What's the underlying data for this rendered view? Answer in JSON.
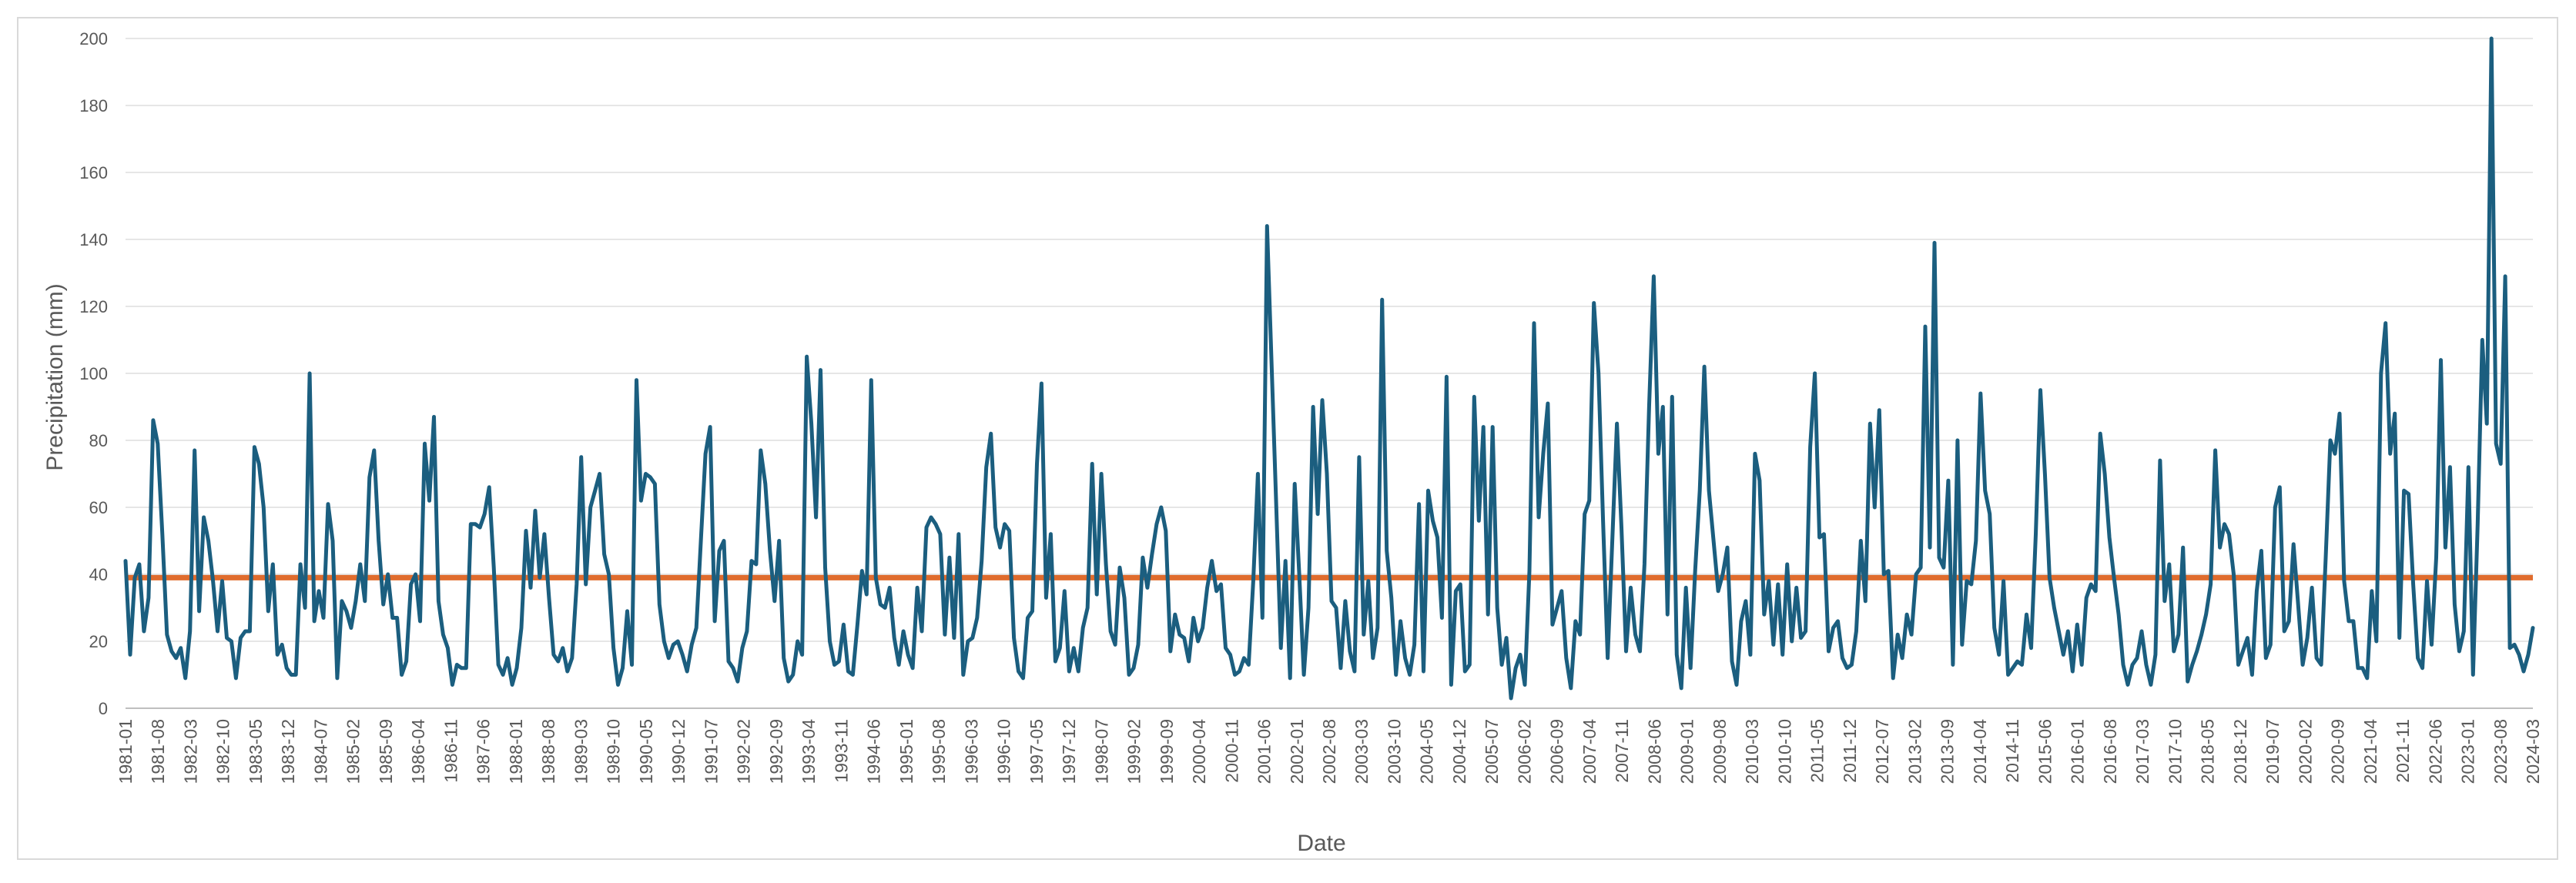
{
  "chart_data": {
    "type": "line",
    "title": "",
    "xlabel": "Date",
    "ylabel": "Precipitation (mm)",
    "ylim": [
      0,
      200
    ],
    "yticks": [
      0,
      20,
      40,
      60,
      80,
      100,
      120,
      140,
      160,
      180,
      200
    ],
    "grid": true,
    "legend": "none",
    "x_start": "1981-01",
    "x_end": "2024-03",
    "x_tick_labels": [
      "1981-01",
      "1981-08",
      "1982-03",
      "1982-10",
      "1983-05",
      "1983-12",
      "1984-07",
      "1985-02",
      "1985-09",
      "1986-04",
      "1986-11",
      "1987-06",
      "1988-01",
      "1988-08",
      "1989-03",
      "1989-10",
      "1990-05",
      "1990-12",
      "1991-07",
      "1992-02",
      "1992-09",
      "1993-04",
      "1993-11",
      "1994-06",
      "1995-01",
      "1995-08",
      "1996-03",
      "1996-10",
      "1997-05",
      "1997-12",
      "1998-07",
      "1999-02",
      "1999-09",
      "2000-04",
      "2000-11",
      "2001-06",
      "2002-01",
      "2002-08",
      "2003-03",
      "2003-10",
      "2004-05",
      "2004-12",
      "2005-07",
      "2006-02",
      "2006-09",
      "2007-04",
      "2007-11",
      "2008-06",
      "2009-01",
      "2009-08",
      "2010-03",
      "2010-10",
      "2011-05",
      "2011-12",
      "2012-07",
      "2013-02",
      "2013-09",
      "2014-04",
      "2014-11",
      "2015-06",
      "2016-01",
      "2016-08",
      "2017-03",
      "2017-10",
      "2018-05",
      "2018-12",
      "2019-07",
      "2020-02",
      "2020-09",
      "2021-04",
      "2021-11",
      "2022-06",
      "2023-01",
      "2023-08",
      "2024-03"
    ],
    "series": [
      {
        "color": "#1b5e7f",
        "values": [
          44,
          16,
          39,
          43,
          23,
          33,
          86,
          79,
          52,
          22,
          17,
          15,
          18,
          9,
          23,
          77,
          29,
          57,
          50,
          38,
          23,
          38,
          21,
          20,
          9,
          21,
          23,
          23,
          78,
          73,
          60,
          29,
          43,
          16,
          19,
          12,
          10,
          10,
          43,
          30,
          100,
          26,
          35,
          27,
          61,
          50,
          9,
          32,
          29,
          24,
          32,
          43,
          32,
          69,
          77,
          50,
          31,
          40,
          27,
          27,
          10,
          14,
          37,
          40,
          26,
          79,
          62,
          87,
          32,
          22,
          18,
          7,
          13,
          12,
          12,
          55,
          55,
          54,
          58,
          66,
          42,
          13,
          10,
          15,
          7,
          12,
          24,
          53,
          36,
          59,
          39,
          52,
          33,
          16,
          14,
          18,
          11,
          15,
          37,
          75,
          37,
          60,
          65,
          70,
          46,
          40,
          18,
          7,
          12,
          29,
          13,
          98,
          62,
          70,
          69,
          67,
          31,
          20,
          15,
          19,
          20,
          16,
          11,
          19,
          24,
          50,
          76,
          84,
          26,
          47,
          50,
          14,
          12,
          8,
          18,
          23,
          44,
          43,
          77,
          67,
          47,
          32,
          50,
          15,
          8,
          10,
          20,
          16,
          105,
          85,
          57,
          101,
          42,
          20,
          13,
          14,
          25,
          11,
          10,
          25,
          41,
          34,
          98,
          39,
          31,
          30,
          36,
          21,
          13,
          23,
          16,
          12,
          36,
          23,
          54,
          57,
          55,
          52,
          22,
          45,
          21,
          52,
          10,
          20,
          21,
          27,
          44,
          72,
          82,
          54,
          48,
          55,
          53,
          21,
          11,
          9,
          27,
          29,
          73,
          97,
          33,
          52,
          14,
          18,
          35,
          11,
          18,
          11,
          24,
          30,
          73,
          34,
          70,
          43,
          23,
          19,
          42,
          33,
          10,
          12,
          19,
          45,
          36,
          46,
          55,
          60,
          53,
          17,
          28,
          22,
          21,
          14,
          27,
          20,
          24,
          36,
          44,
          35,
          37,
          18,
          16,
          10,
          11,
          15,
          13,
          38,
          70,
          27,
          144,
          102,
          60,
          18,
          44,
          9,
          67,
          40,
          10,
          30,
          90,
          58,
          92,
          70,
          32,
          30,
          12,
          32,
          17,
          11,
          75,
          22,
          38,
          15,
          24,
          122,
          47,
          33,
          10,
          26,
          15,
          10,
          19,
          61,
          11,
          65,
          56,
          51,
          27,
          99,
          7,
          35,
          37,
          11,
          13,
          93,
          56,
          84,
          28,
          84,
          30,
          13,
          21,
          3,
          12,
          16,
          7,
          41,
          115,
          57,
          76,
          91,
          25,
          30,
          35,
          15,
          6,
          26,
          22,
          58,
          62,
          121,
          100,
          56,
          15,
          50,
          85,
          54,
          17,
          36,
          22,
          17,
          43,
          90,
          129,
          76,
          90,
          28,
          93,
          16,
          6,
          36,
          12,
          41,
          65,
          102,
          65,
          50,
          35,
          40,
          48,
          14,
          7,
          26,
          32,
          16,
          76,
          68,
          28,
          38,
          19,
          37,
          16,
          43,
          20,
          36,
          21,
          23,
          78,
          100,
          51,
          52,
          17,
          24,
          26,
          15,
          12,
          13,
          23,
          50,
          32,
          85,
          60,
          89,
          40,
          41,
          9,
          22,
          15,
          28,
          22,
          40,
          42,
          114,
          48,
          139,
          45,
          42,
          68,
          13,
          80,
          19,
          38,
          37,
          50,
          94,
          65,
          58,
          24,
          16,
          38,
          10,
          12,
          14,
          13,
          28,
          18,
          52,
          95,
          70,
          39,
          30,
          23,
          16,
          23,
          11,
          25,
          13,
          33,
          37,
          35,
          82,
          70,
          51,
          39,
          28,
          13,
          7,
          13,
          15,
          23,
          13,
          7,
          16,
          74,
          32,
          43,
          17,
          22,
          48,
          8,
          13,
          17,
          22,
          28,
          37,
          77,
          48,
          55,
          52,
          40,
          13,
          17,
          21,
          10,
          35,
          47,
          15,
          19,
          60,
          66,
          23,
          26,
          49,
          31,
          13,
          21,
          36,
          15,
          13,
          45,
          80,
          76,
          88,
          38,
          26,
          26,
          12,
          12,
          9,
          35,
          20,
          100,
          115,
          76,
          88,
          21,
          65,
          64,
          37,
          15,
          12,
          38,
          19,
          45,
          104,
          48,
          72,
          31,
          17,
          23,
          72,
          10,
          55,
          110,
          85,
          200,
          79,
          73,
          129,
          18,
          19,
          16,
          11,
          16,
          24
        ]
      }
    ],
    "reference_line": {
      "value": 39,
      "color": "#e06c2d"
    }
  }
}
